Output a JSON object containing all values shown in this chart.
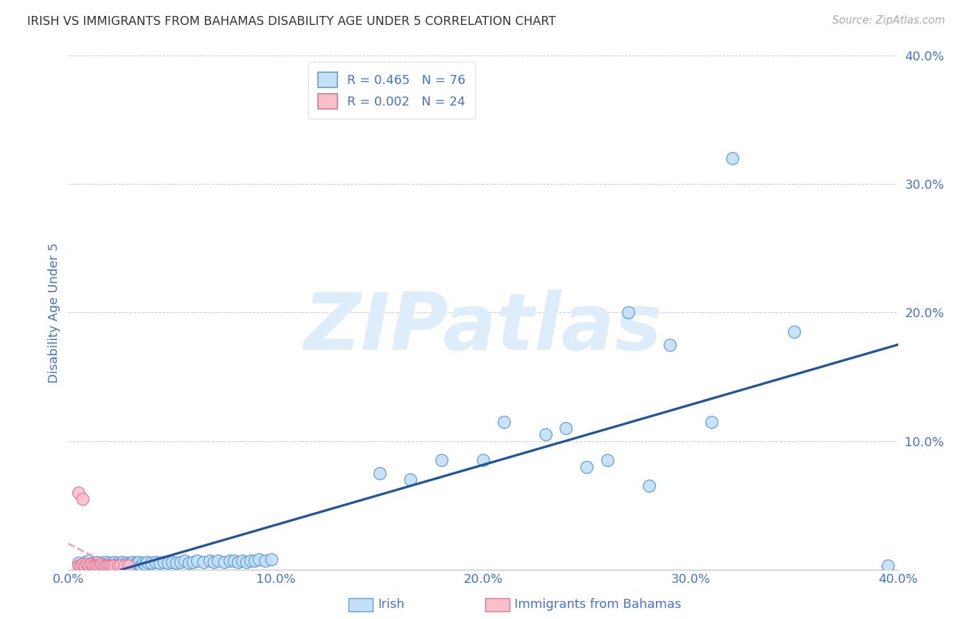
{
  "title": "IRISH VS IMMIGRANTS FROM BAHAMAS DISABILITY AGE UNDER 5 CORRELATION CHART",
  "source": "Source: ZipAtlas.com",
  "ylabel_label": "Disability Age Under 5",
  "legend_label_1": "Irish",
  "legend_label_2": "Immigrants from Bahamas",
  "R1": 0.465,
  "N1": 76,
  "R2": 0.002,
  "N2": 24,
  "color_irish_fill": "#c5dff7",
  "color_irish_edge": "#5b9bd5",
  "color_bahamas_fill": "#f9c0cc",
  "color_bahamas_edge": "#e07090",
  "color_trend_irish": "#2255a0",
  "color_trend_bahamas": "#f4a0b8",
  "color_blue_text": "#4472c4",
  "watermark_color": "#ddeefa",
  "grid_color": "#cccccc",
  "background_color": "#ffffff",
  "irish_x": [
    0.005,
    0.007,
    0.008,
    0.01,
    0.01,
    0.011,
    0.012,
    0.013,
    0.014,
    0.015,
    0.016,
    0.017,
    0.018,
    0.019,
    0.02,
    0.021,
    0.022,
    0.023,
    0.024,
    0.025,
    0.026,
    0.027,
    0.028,
    0.029,
    0.03,
    0.031,
    0.032,
    0.033,
    0.034,
    0.035,
    0.036,
    0.037,
    0.038,
    0.04,
    0.042,
    0.044,
    0.046,
    0.048,
    0.05,
    0.052,
    0.054,
    0.056,
    0.058,
    0.06,
    0.062,
    0.065,
    0.068,
    0.07,
    0.072,
    0.075,
    0.078,
    0.08,
    0.082,
    0.084,
    0.086,
    0.088,
    0.09,
    0.092,
    0.095,
    0.098,
    0.15,
    0.165,
    0.18,
    0.2,
    0.21,
    0.23,
    0.25,
    0.27,
    0.29,
    0.31,
    0.24,
    0.26,
    0.28,
    0.32,
    0.35,
    0.395
  ],
  "irish_y": [
    0.005,
    0.003,
    0.006,
    0.004,
    0.007,
    0.003,
    0.005,
    0.004,
    0.006,
    0.003,
    0.005,
    0.004,
    0.006,
    0.003,
    0.005,
    0.004,
    0.006,
    0.003,
    0.005,
    0.004,
    0.006,
    0.003,
    0.005,
    0.004,
    0.005,
    0.006,
    0.004,
    0.005,
    0.006,
    0.003,
    0.005,
    0.004,
    0.006,
    0.005,
    0.006,
    0.005,
    0.006,
    0.005,
    0.006,
    0.005,
    0.006,
    0.007,
    0.005,
    0.006,
    0.007,
    0.006,
    0.007,
    0.006,
    0.007,
    0.006,
    0.007,
    0.007,
    0.006,
    0.007,
    0.006,
    0.007,
    0.007,
    0.008,
    0.007,
    0.008,
    0.075,
    0.07,
    0.085,
    0.085,
    0.115,
    0.105,
    0.08,
    0.2,
    0.175,
    0.115,
    0.11,
    0.085,
    0.065,
    0.32,
    0.185,
    0.003
  ],
  "bahamas_x": [
    0.005,
    0.006,
    0.007,
    0.008,
    0.009,
    0.01,
    0.011,
    0.012,
    0.013,
    0.014,
    0.015,
    0.016,
    0.017,
    0.018,
    0.019,
    0.02,
    0.021,
    0.022,
    0.024,
    0.025,
    0.027,
    0.029,
    0.005,
    0.007
  ],
  "bahamas_y": [
    0.003,
    0.003,
    0.004,
    0.003,
    0.004,
    0.003,
    0.004,
    0.003,
    0.003,
    0.003,
    0.003,
    0.004,
    0.003,
    0.003,
    0.003,
    0.003,
    0.003,
    0.003,
    0.003,
    0.003,
    0.003,
    0.003,
    0.06,
    0.055
  ],
  "xlim": [
    0.0,
    0.4
  ],
  "ylim": [
    0.0,
    0.4
  ],
  "xticks": [
    0.0,
    0.1,
    0.2,
    0.3,
    0.4
  ],
  "xtick_labels": [
    "0.0%",
    "10.0%",
    "20.0%",
    "30.0%",
    "40.0%"
  ],
  "ytick_vals": [
    0.0,
    0.1,
    0.2,
    0.3,
    0.4
  ],
  "ytick_labels": [
    "",
    "10.0%",
    "20.0%",
    "30.0%",
    "40.0%"
  ],
  "figsize": [
    14.06,
    8.92
  ],
  "dpi": 100
}
